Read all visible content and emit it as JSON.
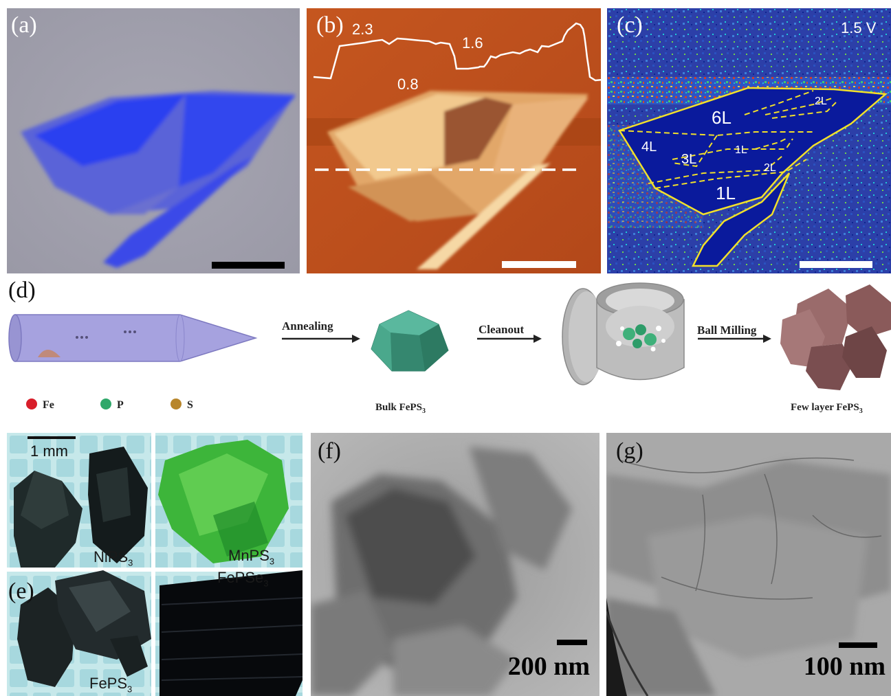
{
  "panels": {
    "a": {
      "label": "(a)"
    },
    "b": {
      "label": "(b)",
      "profile_labels": [
        "2.3",
        "0.8",
        "1.6"
      ]
    },
    "c": {
      "label": "(c)",
      "voltage": "1.5 V",
      "layer_labels": [
        "6L",
        "4L",
        "3L",
        "1L",
        "2L",
        "2L",
        "1L"
      ]
    },
    "d": {
      "label": "(d)",
      "steps": [
        "Annealing",
        "Cleanout",
        "Ball Milling"
      ],
      "products": [
        "Bulk FePS",
        "Few layer FePS"
      ],
      "product_subscript": "3",
      "legend": [
        {
          "element": "Fe",
          "color": "#d81e2a"
        },
        {
          "element": "P",
          "color": "#2fa86a"
        },
        {
          "element": "S",
          "color": "#b8862b"
        }
      ]
    },
    "e": {
      "label": "(e)",
      "scale": "1 mm",
      "crystals": [
        {
          "name": "NiPS",
          "sub": "3"
        },
        {
          "name": "MnPS",
          "sub": "3"
        },
        {
          "name": "FePS",
          "sub": "3"
        },
        {
          "name": "FePSe",
          "sub": "3"
        }
      ]
    },
    "f": {
      "label": "(f)",
      "scale": "200 nm"
    },
    "g": {
      "label": "(g)",
      "scale": "100 nm"
    }
  }
}
